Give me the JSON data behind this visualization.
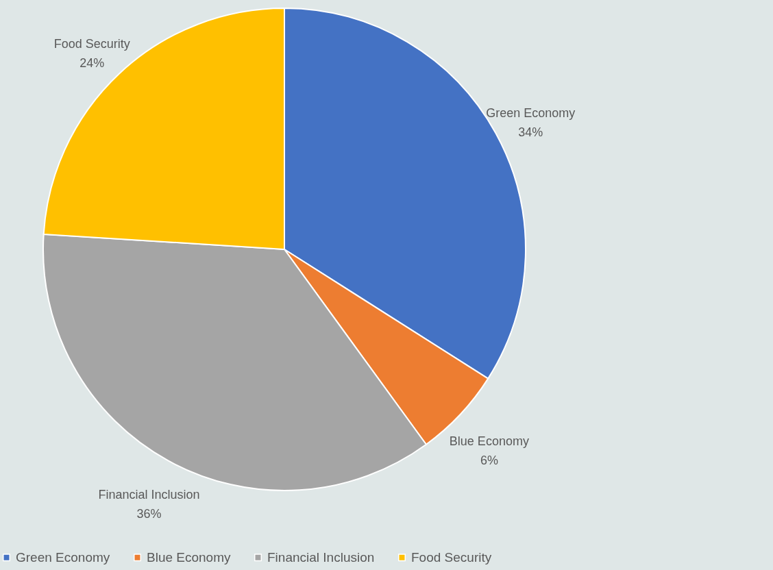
{
  "chart_data": {
    "type": "pie",
    "categories": [
      "Green Economy",
      "Blue Economy",
      "Financial Inclusion",
      "Food Security"
    ],
    "values": [
      34,
      6,
      36,
      24
    ],
    "value_labels": [
      "34%",
      "6%",
      "36%",
      "24%"
    ],
    "colors": [
      "#4472c4",
      "#ed7d31",
      "#a5a5a5",
      "#ffc000"
    ],
    "legend": "bottom"
  }
}
